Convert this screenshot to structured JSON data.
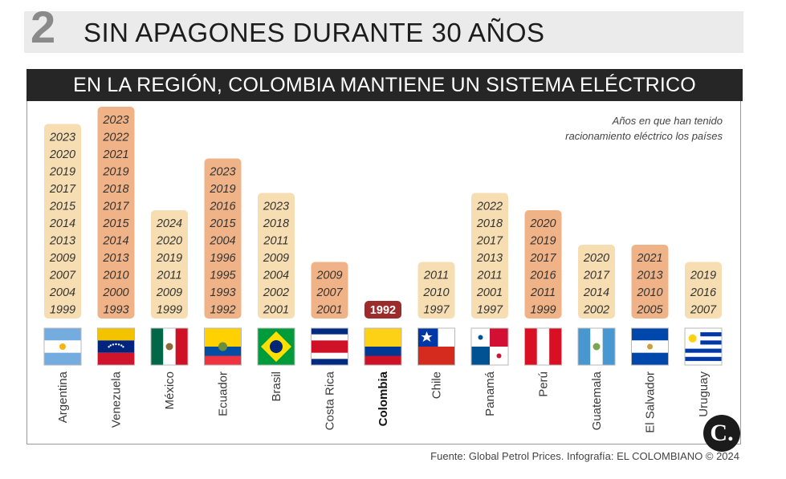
{
  "header": {
    "number": "2",
    "title": "SIN APAGONES DURANTE 30 AÑOS",
    "subtitle": "EN LA REGIÓN, COLOMBIA MANTIENE UN SISTEMA ELÉCTRICO CONFIABLE"
  },
  "note": {
    "line1": "Años en que han tenido",
    "line2": "racionamiento eléctrico los países"
  },
  "source": "Fuente: Global Petrol Prices. Infografía: EL COLOMBIANO © 2024",
  "logo": "C.",
  "colors": {
    "light_bar": "#f6deb2",
    "dark_bar": "#f0b388",
    "colombia_bar": "#9c2b2b",
    "title_bar": "#262626"
  },
  "chart_data": {
    "type": "table",
    "countries": [
      {
        "name": "Argentina",
        "flag": "argentina-flag-icon",
        "tone": "light",
        "years": [
          "2023",
          "2020",
          "2019",
          "2017",
          "2015",
          "2014",
          "2013",
          "2009",
          "2007",
          "2004",
          "1999"
        ]
      },
      {
        "name": "Venezuela",
        "flag": "venezuela-flag-icon",
        "tone": "dark",
        "years": [
          "2023",
          "2022",
          "2021",
          "2019",
          "2018",
          "2017",
          "2015",
          "2014",
          "2013",
          "2010",
          "2000",
          "1993"
        ]
      },
      {
        "name": "México",
        "flag": "mexico-flag-icon",
        "tone": "light",
        "years": [
          "2024",
          "2020",
          "2019",
          "2011",
          "2009",
          "1999"
        ]
      },
      {
        "name": "Ecuador",
        "flag": "ecuador-flag-icon",
        "tone": "dark",
        "years": [
          "2023",
          "2019",
          "2016",
          "2015",
          "2004",
          "1996",
          "1995",
          "1993",
          "1992"
        ]
      },
      {
        "name": "Brasil",
        "flag": "brasil-flag-icon",
        "tone": "light",
        "years": [
          "2023",
          "2018",
          "2011",
          "2009",
          "2004",
          "2002",
          "2001"
        ]
      },
      {
        "name": "Costa Rica",
        "flag": "costa-rica-flag-icon",
        "tone": "dark",
        "years": [
          "2009",
          "2007",
          "2001"
        ]
      },
      {
        "name": "Colombia",
        "flag": "colombia-flag-icon",
        "tone": "colombia",
        "highlight": true,
        "years": [
          "1992"
        ]
      },
      {
        "name": "Chile",
        "flag": "chile-flag-icon",
        "tone": "light",
        "years": [
          "2011",
          "2010",
          "1997"
        ]
      },
      {
        "name": "Panamá",
        "flag": "panama-flag-icon",
        "tone": "light",
        "years": [
          "2022",
          "2018",
          "2017",
          "2013",
          "2011",
          "2001",
          "1997"
        ]
      },
      {
        "name": "Perú",
        "flag": "peru-flag-icon",
        "tone": "dark",
        "years": [
          "2020",
          "2019",
          "2017",
          "2016",
          "2011",
          "1999"
        ]
      },
      {
        "name": "Guatemala",
        "flag": "guatemala-flag-icon",
        "tone": "light",
        "years": [
          "2020",
          "2017",
          "2014",
          "2002"
        ]
      },
      {
        "name": "El Salvador",
        "flag": "el-salvador-flag-icon",
        "tone": "dark",
        "years": [
          "2021",
          "2013",
          "2010",
          "2005"
        ]
      },
      {
        "name": "Uruguay",
        "flag": "uruguay-flag-icon",
        "tone": "light",
        "years": [
          "2019",
          "2016",
          "2007"
        ]
      }
    ]
  }
}
